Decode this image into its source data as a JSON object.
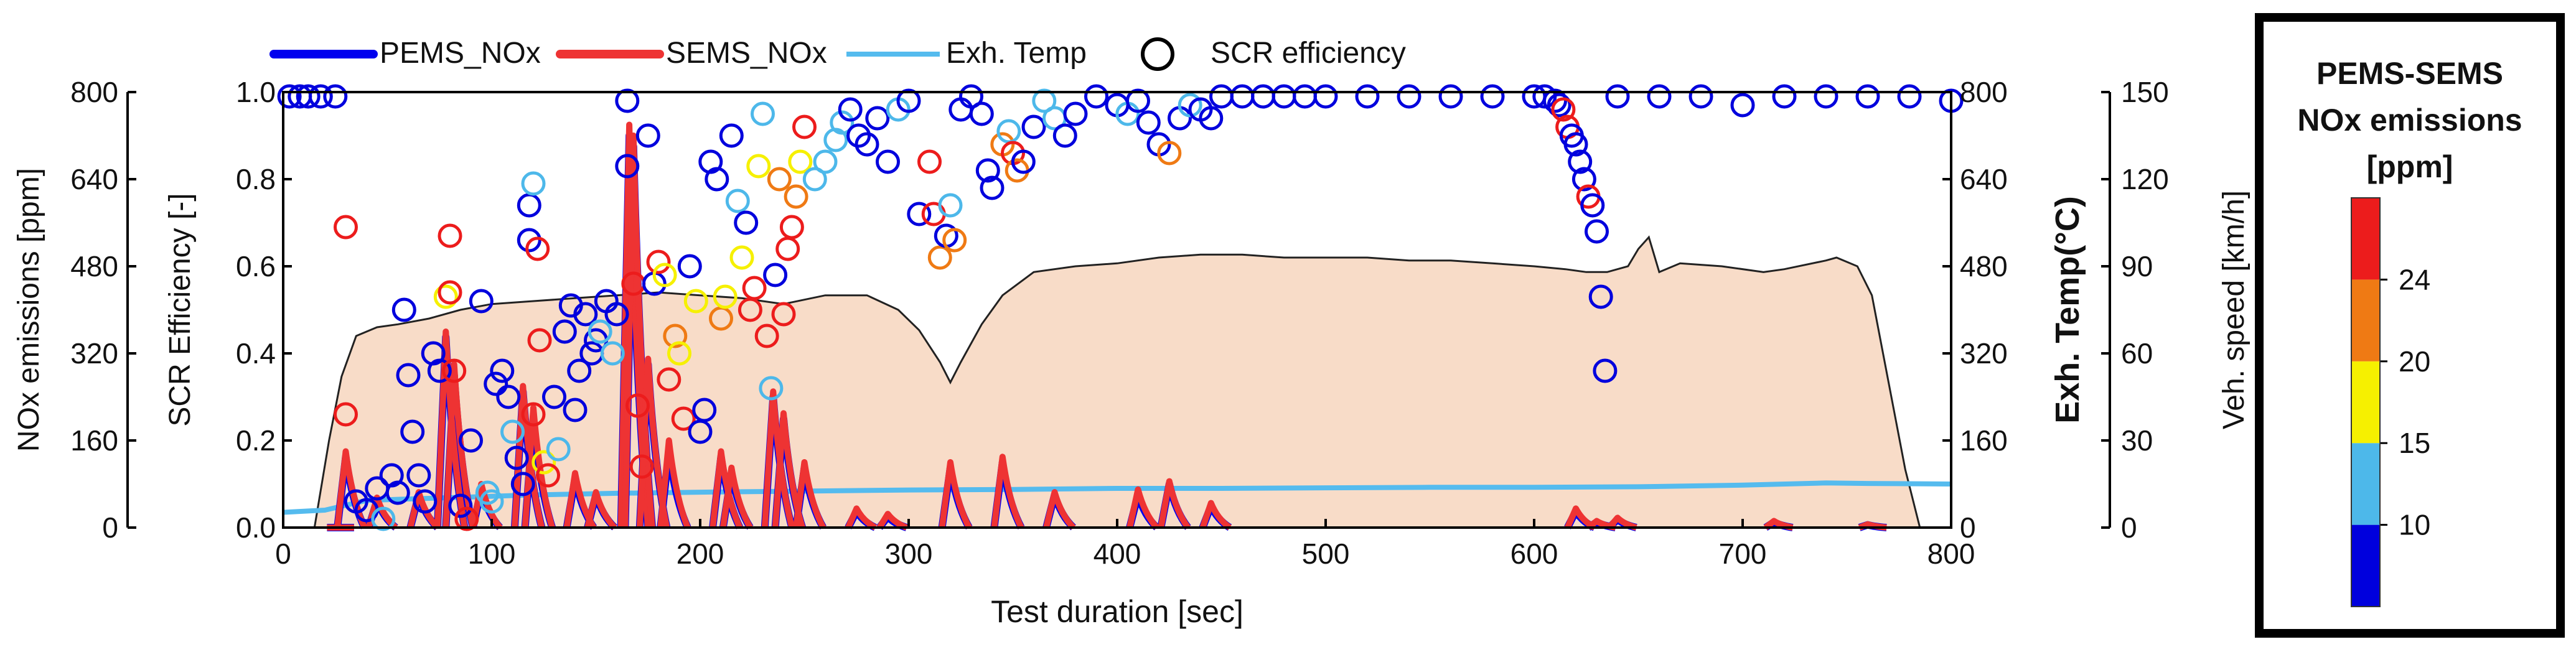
{
  "chart_data": {
    "type": "scatter",
    "title": "",
    "x": {
      "label": "Test duration [sec]",
      "lim": [
        0,
        800
      ],
      "ticks": [
        0,
        100,
        200,
        300,
        400,
        500,
        600,
        700,
        800
      ]
    },
    "axes": {
      "nox": {
        "label": "NOx emissions [ppm]",
        "lim": [
          0,
          800
        ],
        "ticks": [
          0,
          160,
          320,
          480,
          640,
          800
        ]
      },
      "eff": {
        "label": "SCR Efficiency [-]",
        "lim": [
          0,
          1.0
        ],
        "ticks": [
          "0.0",
          "0.2",
          "0.4",
          "0.6",
          "0.8",
          "1.0"
        ]
      },
      "temp": {
        "label": "Exh. Temp(°C)",
        "lim": [
          0,
          800
        ],
        "ticks": [
          0,
          160,
          320,
          480,
          640,
          800
        ]
      },
      "speed": {
        "label": "Veh. speed [km/h]",
        "lim": [
          0,
          150
        ],
        "ticks": [
          0,
          30,
          60,
          90,
          120,
          150
        ]
      }
    },
    "legend": [
      {
        "name": "PEMS_NOx",
        "color": "#0000ee",
        "kind": "line"
      },
      {
        "name": "SEMS_NOx",
        "color": "#ee3333",
        "kind": "line"
      },
      {
        "name": "Exh. Temp",
        "color": "#55bbee",
        "kind": "line"
      },
      {
        "name": "SCR efficiency",
        "color": "#000000",
        "kind": "marker"
      }
    ],
    "speed_profile": {
      "color": "#f8dcc8",
      "t": [
        0,
        15,
        22,
        28,
        35,
        45,
        55,
        70,
        85,
        100,
        120,
        140,
        160,
        180,
        200,
        220,
        240,
        260,
        280,
        295,
        305,
        315,
        320,
        325,
        335,
        345,
        360,
        380,
        400,
        420,
        440,
        460,
        480,
        500,
        520,
        540,
        560,
        580,
        600,
        615,
        625,
        635,
        645,
        650,
        655,
        660,
        670,
        690,
        710,
        720,
        740,
        745,
        755,
        762,
        770,
        778,
        785,
        800
      ],
      "speed": [
        0,
        0,
        30,
        52,
        66,
        69,
        70,
        72,
        75,
        77,
        78,
        79,
        80,
        81,
        80,
        79,
        77,
        80,
        80,
        75,
        68,
        57,
        50,
        57,
        70,
        80,
        88,
        90,
        91,
        93,
        94,
        94,
        93,
        93,
        93,
        92,
        92,
        91,
        90,
        89,
        88,
        88,
        90,
        96,
        100,
        88,
        91,
        90,
        88,
        89,
        92,
        93,
        90,
        80,
        50,
        20,
        0,
        0
      ]
    },
    "exh_temp": {
      "color": "#55bbee",
      "t": [
        0,
        20,
        40,
        80,
        120,
        160,
        200,
        250,
        300,
        350,
        400,
        450,
        500,
        550,
        600,
        650,
        700,
        740,
        760,
        800
      ],
      "temp": [
        28,
        32,
        50,
        55,
        60,
        63,
        65,
        67,
        69,
        70,
        72,
        72,
        73,
        74,
        74,
        75,
        78,
        82,
        81,
        80
      ]
    },
    "nox_peaks": {
      "t": [
        25,
        30,
        45,
        65,
        78,
        82,
        95,
        115,
        120,
        140,
        150,
        166,
        168,
        175,
        185,
        210,
        215,
        235,
        240,
        250,
        275,
        290,
        320,
        345,
        370,
        410,
        425,
        445,
        620,
        630,
        640,
        715,
        760
      ],
      "pems": [
        0,
        130,
        50,
        60,
        350,
        280,
        70,
        250,
        200,
        90,
        60,
        720,
        700,
        300,
        140,
        130,
        100,
        240,
        200,
        110,
        30,
        20,
        110,
        120,
        60,
        60,
        80,
        40,
        30,
        10,
        15,
        10,
        5
      ],
      "sems": [
        0,
        140,
        55,
        65,
        360,
        300,
        80,
        260,
        220,
        100,
        65,
        740,
        720,
        310,
        160,
        140,
        110,
        250,
        210,
        120,
        35,
        25,
        120,
        130,
        65,
        70,
        85,
        45,
        35,
        12,
        18,
        12,
        6
      ]
    },
    "scr_efficiency": {
      "colorbar": {
        "title": [
          "PEMS-SEMS",
          "NOx emissions",
          "[ppm]"
        ],
        "bands": [
          {
            "label": "10",
            "range": [
              0,
              10
            ],
            "color": "#0000dd"
          },
          {
            "label": "15",
            "range": [
              10,
              15
            ],
            "color": "#4db8ea"
          },
          {
            "label": "20",
            "range": [
              15,
              20
            ],
            "color": "#f6f000"
          },
          {
            "label": "24",
            "range": [
              20,
              24
            ],
            "color": "#ef7a14"
          },
          {
            "label": "",
            "range": [
              24,
              30
            ],
            "color": "#ec1c1c"
          }
        ]
      },
      "points": [
        [
          3,
          0.99,
          5
        ],
        [
          8,
          0.99,
          5
        ],
        [
          12,
          0.99,
          5
        ],
        [
          18,
          0.99,
          5
        ],
        [
          25,
          0.99,
          5
        ],
        [
          30,
          0.69,
          26
        ],
        [
          30,
          0.26,
          26
        ],
        [
          35,
          0.06,
          5
        ],
        [
          40,
          0.04,
          5
        ],
        [
          45,
          0.09,
          5
        ],
        [
          48,
          0.02,
          12
        ],
        [
          52,
          0.12,
          5
        ],
        [
          55,
          0.08,
          5
        ],
        [
          58,
          0.5,
          5
        ],
        [
          60,
          0.35,
          5
        ],
        [
          62,
          0.22,
          5
        ],
        [
          65,
          0.12,
          5
        ],
        [
          68,
          0.06,
          5
        ],
        [
          72,
          0.4,
          5
        ],
        [
          75,
          0.36,
          5
        ],
        [
          78,
          0.53,
          17
        ],
        [
          80,
          0.67,
          26
        ],
        [
          80,
          0.54,
          26
        ],
        [
          82,
          0.36,
          26
        ],
        [
          85,
          0.05,
          5
        ],
        [
          88,
          0.02,
          26
        ],
        [
          90,
          0.2,
          5
        ],
        [
          95,
          0.52,
          5
        ],
        [
          98,
          0.08,
          12
        ],
        [
          100,
          0.06,
          12
        ],
        [
          102,
          0.33,
          5
        ],
        [
          105,
          0.36,
          5
        ],
        [
          108,
          0.3,
          5
        ],
        [
          110,
          0.22,
          12
        ],
        [
          112,
          0.16,
          5
        ],
        [
          115,
          0.1,
          5
        ],
        [
          118,
          0.74,
          5
        ],
        [
          118,
          0.66,
          5
        ],
        [
          120,
          0.79,
          12
        ],
        [
          120,
          0.26,
          26
        ],
        [
          122,
          0.64,
          26
        ],
        [
          123,
          0.43,
          26
        ],
        [
          125,
          0.15,
          17
        ],
        [
          127,
          0.12,
          26
        ],
        [
          130,
          0.3,
          5
        ],
        [
          132,
          0.18,
          12
        ],
        [
          135,
          0.45,
          5
        ],
        [
          138,
          0.51,
          5
        ],
        [
          140,
          0.27,
          5
        ],
        [
          142,
          0.36,
          5
        ],
        [
          145,
          0.49,
          5
        ],
        [
          148,
          0.4,
          5
        ],
        [
          150,
          0.43,
          5
        ],
        [
          152,
          0.45,
          12
        ],
        [
          155,
          0.52,
          5
        ],
        [
          158,
          0.4,
          12
        ],
        [
          160,
          0.49,
          5
        ],
        [
          165,
          0.98,
          5
        ],
        [
          165,
          0.83,
          5
        ],
        [
          168,
          0.56,
          26
        ],
        [
          170,
          0.28,
          26
        ],
        [
          172,
          0.14,
          26
        ],
        [
          175,
          0.9,
          5
        ],
        [
          178,
          0.56,
          5
        ],
        [
          180,
          0.61,
          26
        ],
        [
          183,
          0.58,
          17
        ],
        [
          185,
          0.34,
          26
        ],
        [
          188,
          0.44,
          22
        ],
        [
          190,
          0.4,
          17
        ],
        [
          192,
          0.25,
          26
        ],
        [
          195,
          0.6,
          5
        ],
        [
          198,
          0.52,
          17
        ],
        [
          200,
          0.22,
          5
        ],
        [
          202,
          0.27,
          5
        ],
        [
          205,
          0.84,
          5
        ],
        [
          208,
          0.8,
          5
        ],
        [
          210,
          0.48,
          22
        ],
        [
          212,
          0.53,
          17
        ],
        [
          215,
          0.9,
          5
        ],
        [
          218,
          0.75,
          12
        ],
        [
          220,
          0.62,
          17
        ],
        [
          222,
          0.7,
          5
        ],
        [
          224,
          0.5,
          26
        ],
        [
          226,
          0.55,
          26
        ],
        [
          228,
          0.83,
          17
        ],
        [
          230,
          0.95,
          12
        ],
        [
          232,
          0.44,
          26
        ],
        [
          234,
          0.32,
          12
        ],
        [
          236,
          0.58,
          5
        ],
        [
          238,
          0.8,
          22
        ],
        [
          240,
          0.49,
          26
        ],
        [
          242,
          0.64,
          26
        ],
        [
          244,
          0.69,
          26
        ],
        [
          246,
          0.76,
          22
        ],
        [
          248,
          0.84,
          17
        ],
        [
          250,
          0.92,
          26
        ],
        [
          255,
          0.8,
          12
        ],
        [
          260,
          0.84,
          12
        ],
        [
          265,
          0.89,
          12
        ],
        [
          268,
          0.93,
          12
        ],
        [
          272,
          0.96,
          5
        ],
        [
          276,
          0.9,
          5
        ],
        [
          280,
          0.88,
          5
        ],
        [
          285,
          0.94,
          5
        ],
        [
          290,
          0.84,
          5
        ],
        [
          295,
          0.96,
          12
        ],
        [
          300,
          0.98,
          5
        ],
        [
          305,
          0.72,
          5
        ],
        [
          310,
          0.84,
          26
        ],
        [
          312,
          0.72,
          26
        ],
        [
          315,
          0.62,
          22
        ],
        [
          318,
          0.67,
          5
        ],
        [
          320,
          0.74,
          12
        ],
        [
          322,
          0.66,
          22
        ],
        [
          325,
          0.96,
          5
        ],
        [
          330,
          0.99,
          5
        ],
        [
          335,
          0.95,
          5
        ],
        [
          338,
          0.82,
          5
        ],
        [
          340,
          0.78,
          5
        ],
        [
          345,
          0.88,
          22
        ],
        [
          348,
          0.91,
          12
        ],
        [
          350,
          0.86,
          26
        ],
        [
          352,
          0.82,
          22
        ],
        [
          355,
          0.84,
          5
        ],
        [
          360,
          0.92,
          5
        ],
        [
          365,
          0.98,
          12
        ],
        [
          370,
          0.94,
          12
        ],
        [
          375,
          0.9,
          5
        ],
        [
          380,
          0.95,
          5
        ],
        [
          390,
          0.99,
          5
        ],
        [
          400,
          0.97,
          5
        ],
        [
          405,
          0.95,
          12
        ],
        [
          410,
          0.98,
          5
        ],
        [
          415,
          0.93,
          5
        ],
        [
          420,
          0.88,
          5
        ],
        [
          425,
          0.86,
          22
        ],
        [
          430,
          0.94,
          5
        ],
        [
          435,
          0.97,
          12
        ],
        [
          440,
          0.96,
          5
        ],
        [
          445,
          0.94,
          5
        ],
        [
          450,
          0.99,
          5
        ],
        [
          460,
          0.99,
          5
        ],
        [
          470,
          0.99,
          5
        ],
        [
          480,
          0.99,
          5
        ],
        [
          490,
          0.99,
          5
        ],
        [
          500,
          0.99,
          5
        ],
        [
          520,
          0.99,
          5
        ],
        [
          540,
          0.99,
          5
        ],
        [
          560,
          0.99,
          5
        ],
        [
          580,
          0.99,
          5
        ],
        [
          600,
          0.99,
          5
        ],
        [
          605,
          0.99,
          5
        ],
        [
          610,
          0.98,
          5
        ],
        [
          612,
          0.97,
          5
        ],
        [
          614,
          0.96,
          26
        ],
        [
          616,
          0.92,
          26
        ],
        [
          618,
          0.9,
          5
        ],
        [
          620,
          0.88,
          5
        ],
        [
          622,
          0.84,
          5
        ],
        [
          624,
          0.8,
          5
        ],
        [
          626,
          0.76,
          26
        ],
        [
          628,
          0.74,
          5
        ],
        [
          630,
          0.68,
          5
        ],
        [
          632,
          0.53,
          5
        ],
        [
          634,
          0.36,
          5
        ],
        [
          640,
          0.99,
          5
        ],
        [
          660,
          0.99,
          5
        ],
        [
          680,
          0.99,
          5
        ],
        [
          700,
          0.97,
          5
        ],
        [
          720,
          0.99,
          5
        ],
        [
          740,
          0.99,
          5
        ],
        [
          760,
          0.99,
          5
        ],
        [
          780,
          0.99,
          5
        ],
        [
          800,
          0.98,
          5
        ]
      ]
    }
  }
}
